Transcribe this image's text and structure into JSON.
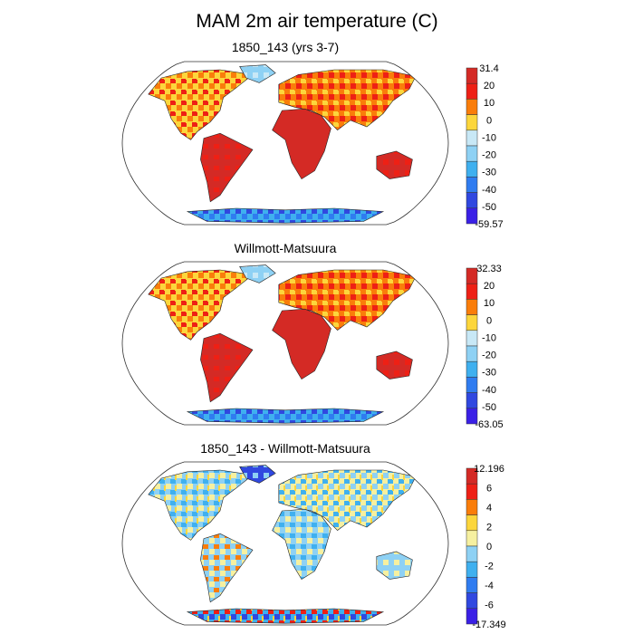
{
  "title": "MAM 2m air temperature (C)",
  "panels": [
    {
      "title": "1850_143 (yrs 3-7)",
      "kind": "absolute",
      "colorbar": {
        "labels": [
          "31.4",
          "20",
          "10",
          "0",
          "-10",
          "-20",
          "-30",
          "-40",
          "-50",
          "-59.57"
        ],
        "colors": [
          "#d42a25",
          "#ee2015",
          "#fa7d0a",
          "#fcd63c",
          "#c8e8f6",
          "#8ed1f4",
          "#3fb0ef",
          "#2f7cf0",
          "#3048e0",
          "#3a20e6"
        ]
      }
    },
    {
      "title": "Willmott-Matsuura",
      "kind": "absolute",
      "colorbar": {
        "labels": [
          "32.33",
          "20",
          "10",
          "0",
          "-10",
          "-20",
          "-30",
          "-40",
          "-50",
          "-63.05"
        ],
        "colors": [
          "#d42a25",
          "#ee2015",
          "#fa7d0a",
          "#fcd63c",
          "#c8e8f6",
          "#8ed1f4",
          "#3fb0ef",
          "#2f7cf0",
          "#3048e0",
          "#3a20e6"
        ]
      }
    },
    {
      "title": "1850_143 - Willmott-Matsuura",
      "kind": "difference",
      "colorbar": {
        "labels": [
          "12.196",
          "6",
          "4",
          "2",
          "0",
          "-2",
          "-4",
          "-6",
          "-17.349"
        ],
        "colors": [
          "#d42a25",
          "#ee2015",
          "#fa7d0a",
          "#fcd63c",
          "#f6f0a0",
          "#8ed1f4",
          "#3fb0ef",
          "#2f7cf0",
          "#3048e0",
          "#3a20e6"
        ]
      }
    }
  ]
}
